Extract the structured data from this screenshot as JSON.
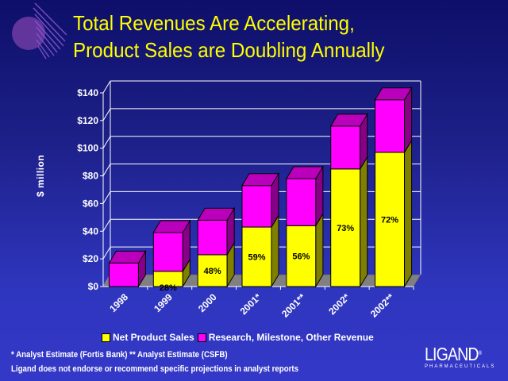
{
  "slide": {
    "title_line1": "Total Revenues Are Accelerating,",
    "title_line2": "Product Sales are Doubling Annually",
    "footnote1": "* Analyst Estimate (Fortis Bank)   ** Analyst Estimate (CSFB)",
    "footnote2": "Ligand does not endorse or recommend specific projections in analyst reports",
    "brand_name": "LIGAND",
    "brand_mark": "®",
    "brand_sub": "PHARMACEUTICALS"
  },
  "colors": {
    "product": "#ffff00",
    "product_side": "#808000",
    "other": "#ff00ff",
    "other_top": "#bb00bb",
    "other_side": "#880088",
    "floor": "#808080",
    "grid": "#ffffff",
    "title": "#ffff00"
  },
  "chart_data": {
    "type": "bar",
    "stacked": true,
    "three_d": true,
    "title": "Total Revenues Are Accelerating, Product Sales are Doubling Annually",
    "xlabel": "",
    "ylabel": "$ million",
    "ylim": [
      0,
      140
    ],
    "yticks": [
      0,
      20,
      40,
      60,
      80,
      100,
      120,
      140
    ],
    "ytick_labels": [
      "$0",
      "$20",
      "$40",
      "$60",
      "$80",
      "$100",
      "$120",
      "$140"
    ],
    "grid": true,
    "legend_position": "bottom",
    "categories": [
      "1998",
      "1999",
      "2000",
      "2001*",
      "2001**",
      "2002*",
      "2002**"
    ],
    "series": [
      {
        "name": "Net Product Sales",
        "values": [
          0,
          11,
          23,
          43,
          44,
          85,
          97
        ]
      },
      {
        "name": "Research, Milestone, Other Revenue",
        "values": [
          17,
          28,
          25,
          30,
          34,
          31,
          38
        ]
      }
    ],
    "data_labels": [
      "",
      "28%",
      "48%",
      "59%",
      "56%",
      "73%",
      "72%"
    ]
  }
}
